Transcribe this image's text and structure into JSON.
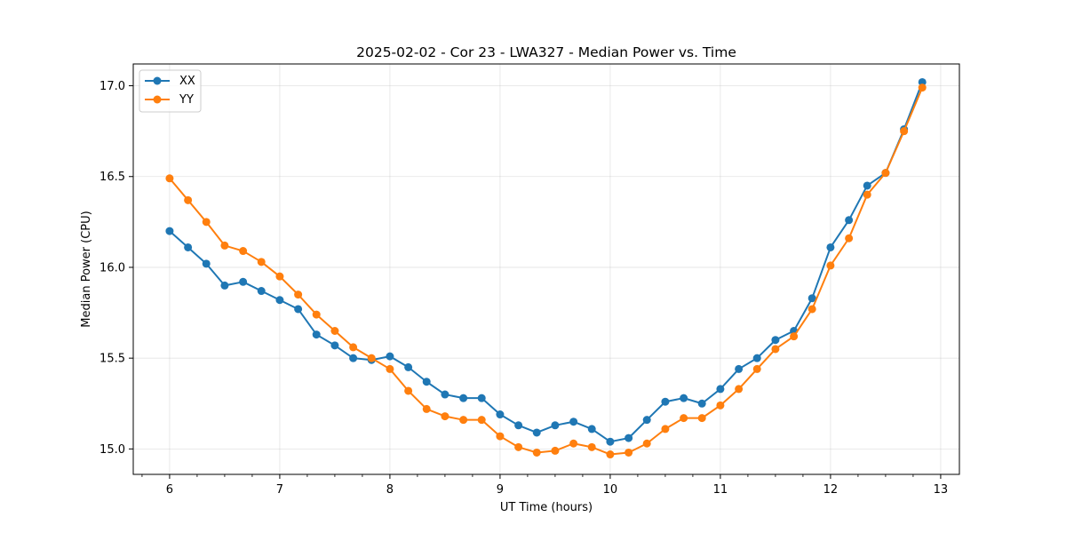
{
  "chart_data": {
    "type": "line",
    "title": "2025-02-02 - Cor 23 - LWA327 - Median Power vs. Time",
    "xlabel": "UT Time (hours)",
    "ylabel": "Median Power (CPU)",
    "xlim": [
      5.67,
      13.17
    ],
    "ylim": [
      14.86,
      17.12
    ],
    "xticks": [
      6,
      7,
      8,
      9,
      10,
      11,
      12,
      13
    ],
    "xtick_labels": [
      "6",
      "7",
      "8",
      "9",
      "10",
      "11",
      "12",
      "13"
    ],
    "yticks": [
      15.0,
      15.5,
      16.0,
      16.5,
      17.0
    ],
    "ytick_labels": [
      "15.0",
      "15.5",
      "16.0",
      "16.5",
      "17.0"
    ],
    "grid": true,
    "legend_position": "top-left",
    "x": [
      6.0,
      6.167,
      6.333,
      6.5,
      6.667,
      6.833,
      7.0,
      7.167,
      7.333,
      7.5,
      7.667,
      7.833,
      8.0,
      8.167,
      8.333,
      8.5,
      8.667,
      8.833,
      9.0,
      9.167,
      9.333,
      9.5,
      9.667,
      9.833,
      10.0,
      10.167,
      10.333,
      10.5,
      10.667,
      10.833,
      11.0,
      11.167,
      11.333,
      11.5,
      11.667,
      11.833,
      12.0,
      12.167,
      12.333,
      12.5,
      12.667,
      12.833
    ],
    "series": [
      {
        "name": "XX",
        "color": "#1f77b4",
        "values": [
          16.2,
          16.11,
          16.02,
          15.9,
          15.92,
          15.87,
          15.82,
          15.77,
          15.63,
          15.57,
          15.5,
          15.49,
          15.51,
          15.45,
          15.37,
          15.3,
          15.28,
          15.28,
          15.19,
          15.13,
          15.09,
          15.13,
          15.15,
          15.11,
          15.04,
          15.06,
          15.16,
          15.26,
          15.28,
          15.25,
          15.33,
          15.44,
          15.5,
          15.6,
          15.65,
          15.83,
          16.11,
          16.26,
          16.45,
          16.52,
          16.76,
          17.02
        ]
      },
      {
        "name": "YY",
        "color": "#ff7f0e",
        "values": [
          16.49,
          16.37,
          16.25,
          16.12,
          16.09,
          16.03,
          15.95,
          15.85,
          15.74,
          15.65,
          15.56,
          15.5,
          15.44,
          15.32,
          15.22,
          15.18,
          15.16,
          15.16,
          15.07,
          15.01,
          14.98,
          14.99,
          15.03,
          15.01,
          14.97,
          14.98,
          15.03,
          15.11,
          15.17,
          15.17,
          15.24,
          15.33,
          15.44,
          15.55,
          15.62,
          15.77,
          16.01,
          16.16,
          16.4,
          16.52,
          16.75,
          16.99
        ]
      }
    ]
  }
}
